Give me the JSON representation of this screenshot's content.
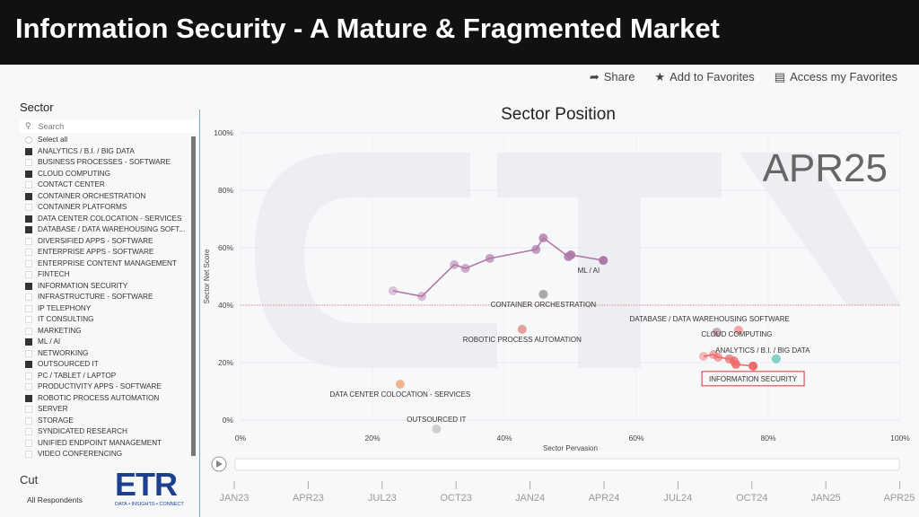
{
  "banner": {
    "title": "Information Security - A Mature & Fragmented Market"
  },
  "topbar": {
    "share": "Share",
    "add_fav": "Add to Favorites",
    "access_fav": "Access my Favorites"
  },
  "sidebar": {
    "title": "Sector",
    "search_placeholder": "Search",
    "select_all": "Select all",
    "items": [
      {
        "label": "ANALYTICS / B.I. / BIG DATA",
        "checked": true
      },
      {
        "label": "BUSINESS PROCESSES - SOFTWARE",
        "checked": false
      },
      {
        "label": "CLOUD COMPUTING",
        "checked": true
      },
      {
        "label": "CONTACT CENTER",
        "checked": false
      },
      {
        "label": "CONTAINER ORCHESTRATION",
        "checked": true
      },
      {
        "label": "CONTAINER PLATFORMS",
        "checked": false
      },
      {
        "label": "DATA CENTER COLOCATION - SERVICES",
        "checked": true
      },
      {
        "label": "DATABASE / DATA WAREHOUSING SOFT...",
        "checked": true
      },
      {
        "label": "DIVERSIFIED APPS - SOFTWARE",
        "checked": false
      },
      {
        "label": "ENTERPRISE APPS - SOFTWARE",
        "checked": false
      },
      {
        "label": "ENTERPRISE CONTENT MANAGEMENT",
        "checked": false
      },
      {
        "label": "FINTECH",
        "checked": false
      },
      {
        "label": "INFORMATION SECURITY",
        "checked": true
      },
      {
        "label": "INFRASTRUCTURE - SOFTWARE",
        "checked": false
      },
      {
        "label": "IP TELEPHONY",
        "checked": false
      },
      {
        "label": "IT CONSULTING",
        "checked": false
      },
      {
        "label": "MARKETING",
        "checked": false
      },
      {
        "label": "ML / AI",
        "checked": true
      },
      {
        "label": "NETWORKING",
        "checked": false
      },
      {
        "label": "OUTSOURCED IT",
        "checked": true
      },
      {
        "label": "PC / TABLET / LAPTOP",
        "checked": false
      },
      {
        "label": "PRODUCTIVITY APPS - SOFTWARE",
        "checked": false
      },
      {
        "label": "ROBOTIC PROCESS AUTOMATION",
        "checked": true
      },
      {
        "label": "SERVER",
        "checked": false
      },
      {
        "label": "STORAGE",
        "checked": false
      },
      {
        "label": "SYNDICATED RESEARCH",
        "checked": false
      },
      {
        "label": "UNIFIED ENDPOINT MANAGEMENT",
        "checked": false
      },
      {
        "label": "VIDEO CONFERENCING",
        "checked": false
      }
    ]
  },
  "cut": {
    "title": "Cut",
    "value": "All Respondents"
  },
  "logo": {
    "text": "ETR",
    "tagline": "DATA • INSIGHTS • CONNECT"
  },
  "chart_data": {
    "type": "scatter",
    "title": "Sector Position",
    "period": "APR25",
    "xlabel": "Sector Pervasion",
    "ylabel": "Sector Net Score",
    "xlim": [
      0,
      100
    ],
    "ylim": [
      0,
      100
    ],
    "xticks": [
      0,
      20,
      40,
      60,
      80,
      100
    ],
    "yticks": [
      0,
      20,
      40,
      60,
      80,
      100
    ],
    "reference_line_y": 40,
    "series": [
      {
        "name": "ML / AI",
        "color": "#b07aa8",
        "trail": true,
        "points": [
          [
            23.1,
            45.0
          ],
          [
            27.5,
            43.1
          ],
          [
            32.4,
            54.1
          ],
          [
            34.1,
            52.8
          ],
          [
            37.8,
            56.3
          ],
          [
            44.8,
            59.4
          ],
          [
            45.9,
            63.4
          ],
          [
            49.7,
            56.9
          ],
          [
            50.1,
            57.5
          ],
          [
            55.0,
            55.6
          ]
        ]
      },
      {
        "name": "CONTAINER ORCHESTRATION",
        "color": "#a9a9ab",
        "points": [
          [
            45.9,
            43.8
          ]
        ]
      },
      {
        "name": "ROBOTIC PROCESS AUTOMATION",
        "color": "#e0a29a",
        "points": [
          [
            42.7,
            31.6
          ]
        ]
      },
      {
        "name": "DATA CENTER COLOCATION - SERVICES",
        "color": "#f2b48f",
        "points": [
          [
            24.2,
            12.5
          ]
        ]
      },
      {
        "name": "OUTSOURCED IT",
        "color": "#cfcfd2",
        "points": [
          [
            29.7,
            -3.1
          ]
        ]
      },
      {
        "name": "DATABASE / DATA WAREHOUSING SOFTWARE",
        "color": "#c9a9bc",
        "points": [
          [
            72.2,
            30.6
          ]
        ]
      },
      {
        "name": "CLOUD COMPUTING",
        "color": "#f4a6a6",
        "points": [
          [
            75.5,
            31.3
          ]
        ]
      },
      {
        "name": "ANALYTICS / B.I. / BIG DATA",
        "color": "#7fd3c8",
        "points": [
          [
            81.2,
            21.3
          ]
        ]
      },
      {
        "name": "INFORMATION SECURITY",
        "color": "#ef6b6b",
        "trail": true,
        "highlight": true,
        "points": [
          [
            70.2,
            22.2
          ],
          [
            71.7,
            22.8
          ],
          [
            72.4,
            21.9
          ],
          [
            74.1,
            21.3
          ],
          [
            74.8,
            20.6
          ],
          [
            75.1,
            19.4
          ],
          [
            77.7,
            18.8
          ]
        ]
      }
    ]
  },
  "timeline": {
    "labels": [
      "JAN23",
      "APR23",
      "JUL23",
      "OCT23",
      "JAN24",
      "APR24",
      "JUL24",
      "OCT24",
      "JAN25",
      "APR25"
    ]
  }
}
